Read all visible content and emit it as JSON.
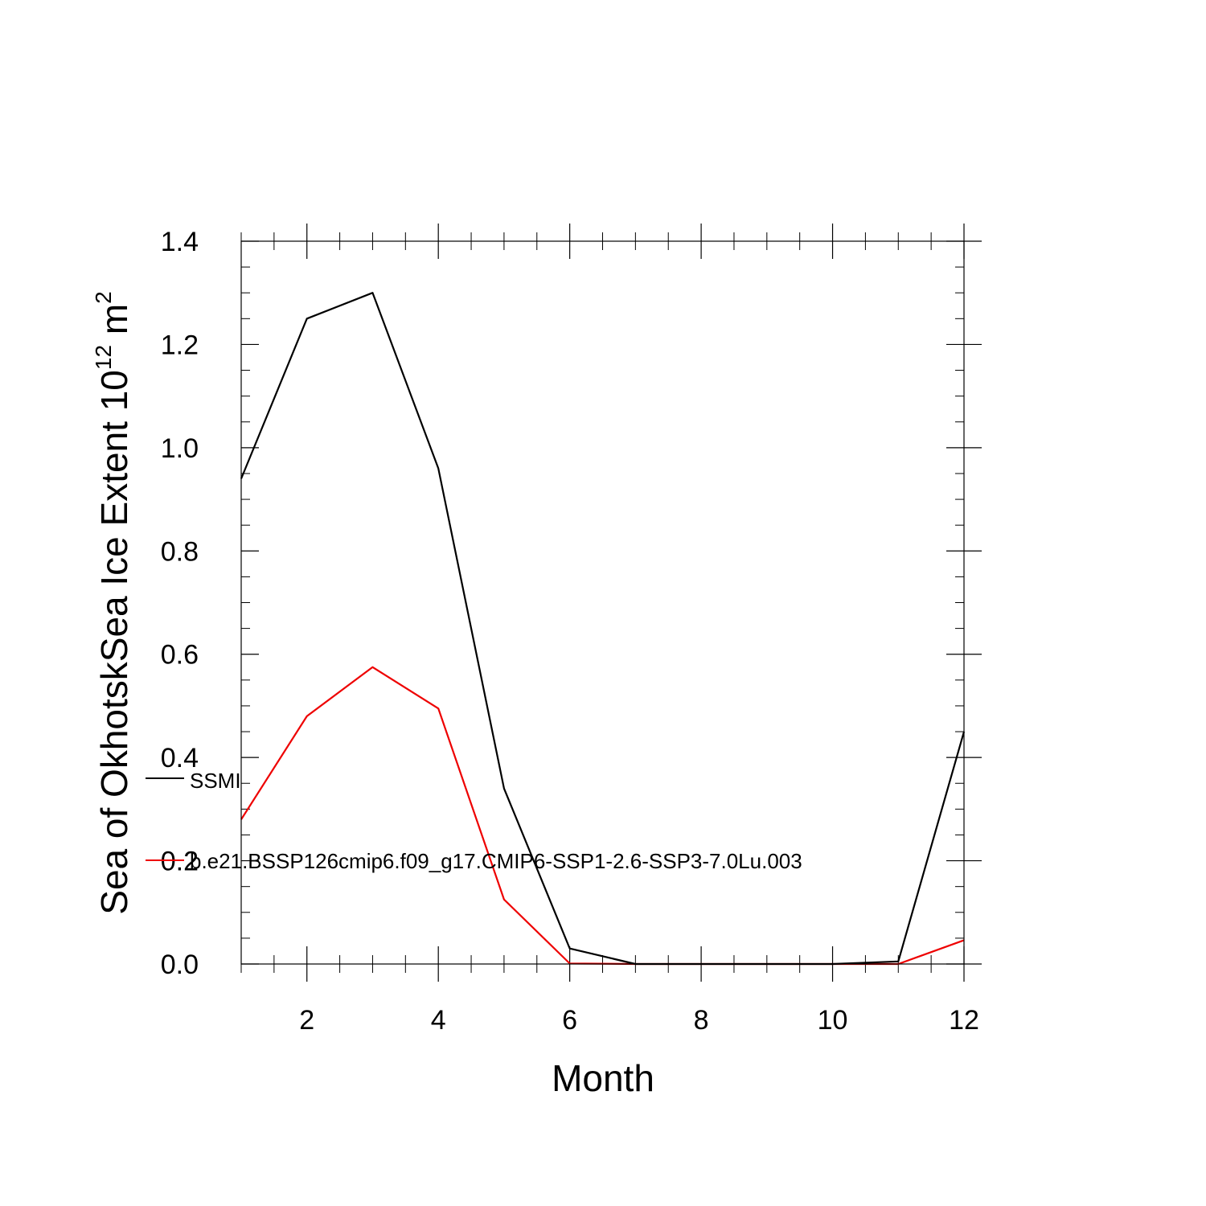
{
  "chart_data": {
    "type": "line",
    "title": "",
    "xlabel": "Month",
    "ylabel_main": "Sea of OkhotskSea Ice Extent 10",
    "ylabel_sup": "12",
    "ylabel_unit": " m",
    "ylabel_unit_sup": "2",
    "xlim": [
      1,
      12
    ],
    "ylim": [
      0.0,
      1.4
    ],
    "x_ticks": [
      2,
      4,
      6,
      8,
      10,
      12
    ],
    "y_ticks": [
      0.0,
      0.2,
      0.4,
      0.6,
      0.8,
      1.0,
      1.2,
      1.4
    ],
    "y_tick_labels": [
      "0.0",
      "0.2",
      "0.4",
      "0.6",
      "0.8",
      "1.0",
      "1.2",
      "1.4"
    ],
    "grid": false,
    "legend_position": "left-center",
    "x": [
      1,
      2,
      3,
      4,
      5,
      6,
      7,
      8,
      9,
      10,
      11,
      12
    ],
    "series": [
      {
        "name": "SSMI",
        "color": "#000000",
        "values": [
          0.94,
          1.25,
          1.3,
          0.96,
          0.34,
          0.03,
          0.0,
          0.0,
          0.0,
          0.0,
          0.005,
          0.45
        ]
      },
      {
        "name": "b.e21.BSSP126cmip6.f09_g17.CMIP6-SSP1-2.6-SSP3-7.0Lu.003",
        "color": "#ee0000",
        "values": [
          0.28,
          0.48,
          0.575,
          0.495,
          0.125,
          0.001,
          0.0,
          0.0,
          0.0,
          0.0,
          0.0,
          0.046
        ]
      }
    ]
  }
}
